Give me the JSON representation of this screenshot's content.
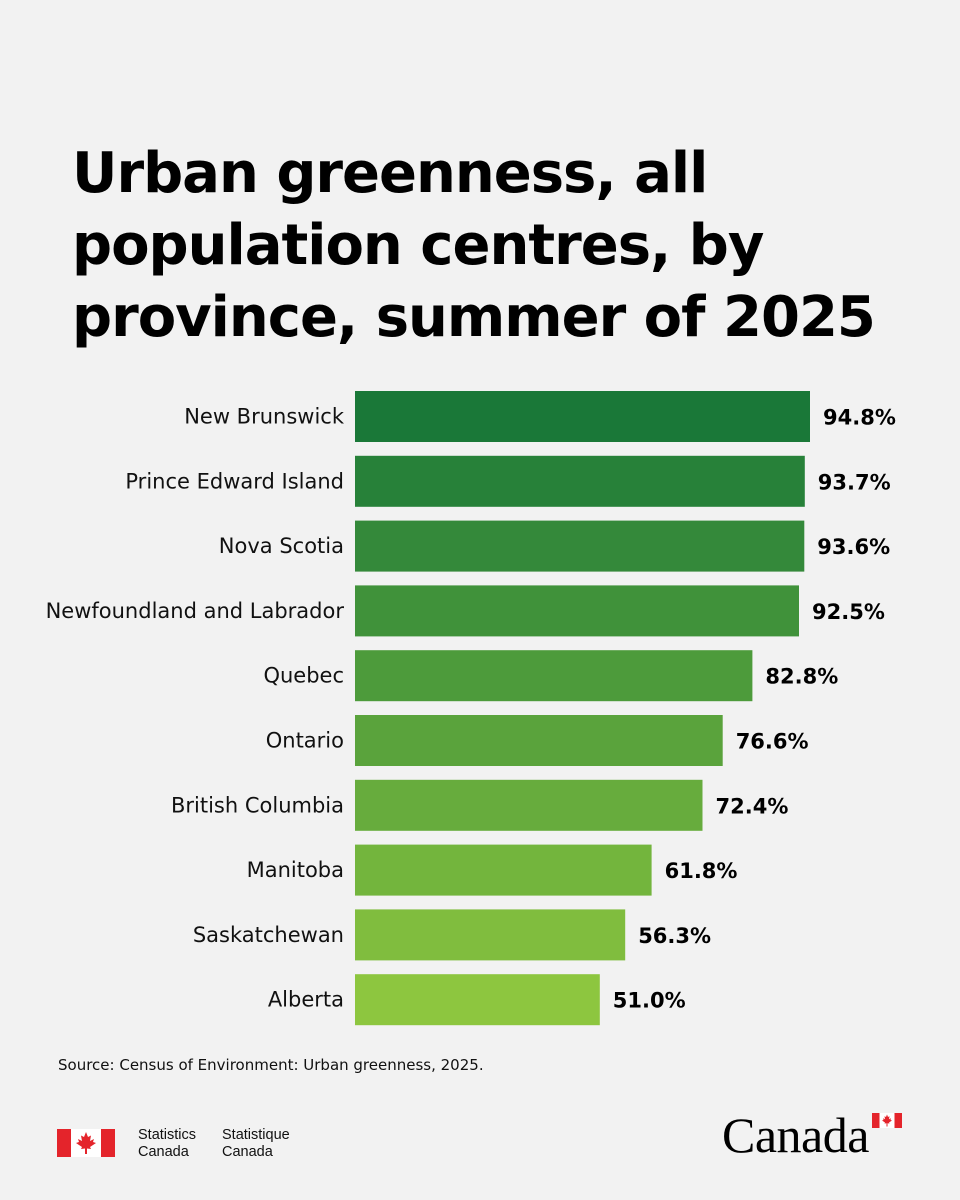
{
  "colors": {
    "background": "#f2f2f2",
    "bar_dark": "#1a7838",
    "bar_light": "#8dc63f",
    "flag_red": "#e4242b"
  },
  "chart_data": {
    "type": "bar",
    "orientation": "horizontal",
    "title": "Urban greenness, all population centres, by province, summer of 2025",
    "categories": [
      "New Brunswick",
      "Prince Edward Island",
      "Nova Scotia",
      "Newfoundland and Labrador",
      "Quebec",
      "Ontario",
      "British Columbia",
      "Manitoba",
      "Saskatchewan",
      "Alberta"
    ],
    "values": [
      94.8,
      93.7,
      93.6,
      92.5,
      82.8,
      76.6,
      72.4,
      61.8,
      56.3,
      51.0
    ],
    "value_labels": [
      "94.8%",
      "93.7%",
      "93.6%",
      "92.5%",
      "82.8%",
      "76.6%",
      "72.4%",
      "61.8%",
      "56.3%",
      "51.0%"
    ],
    "unit": "%",
    "xlim": [
      0,
      100
    ],
    "grid": false,
    "legend": "none"
  },
  "source": "Source: Census of Environment: Urban greenness, 2025.",
  "footer": {
    "signature_en": [
      "Statistics",
      "Canada"
    ],
    "signature_fr": [
      "Statistique",
      "Canada"
    ],
    "wordmark": "Canada"
  }
}
